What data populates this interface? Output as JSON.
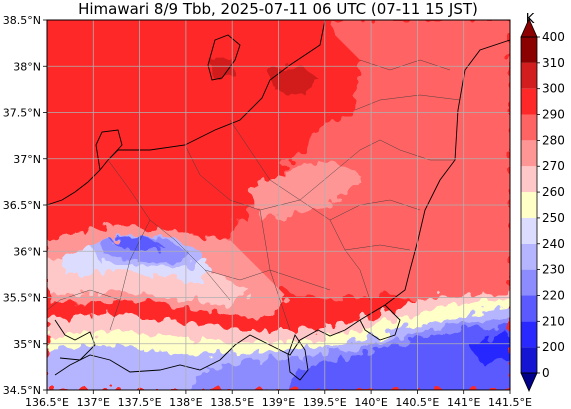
{
  "title": "Himawari 8/9 Tbb, 2025-07-11 06 UTC (07-11 15 JST)",
  "map": {
    "lon_range": [
      136.5,
      141.5
    ],
    "lat_range": [
      34.5,
      38.5
    ],
    "lon_ticks": [
      {
        "value": 136.5,
        "label": "136.5°E"
      },
      {
        "value": 137.0,
        "label": "137°E"
      },
      {
        "value": 137.5,
        "label": "137.5°E"
      },
      {
        "value": 138.0,
        "label": "138°E"
      },
      {
        "value": 138.5,
        "label": "138.5°E"
      },
      {
        "value": 139.0,
        "label": "139°E"
      },
      {
        "value": 139.5,
        "label": "139.5°E"
      },
      {
        "value": 140.0,
        "label": "140°E"
      },
      {
        "value": 140.5,
        "label": "140.5°E"
      },
      {
        "value": 141.0,
        "label": "141°E"
      },
      {
        "value": 141.5,
        "label": "141.5°E"
      }
    ],
    "lat_ticks": [
      {
        "value": 38.5,
        "label": "38.5°N"
      },
      {
        "value": 38.0,
        "label": "38°N"
      },
      {
        "value": 37.5,
        "label": "37.5°N"
      },
      {
        "value": 37.0,
        "label": "37°N"
      },
      {
        "value": 36.5,
        "label": "36.5°N"
      },
      {
        "value": 36.0,
        "label": "36°N"
      },
      {
        "value": 35.5,
        "label": "35.5°N"
      },
      {
        "value": 35.0,
        "label": "35°N"
      },
      {
        "value": 34.5,
        "label": "34.5°N"
      }
    ],
    "grid": true
  },
  "colorbar": {
    "unit": "K",
    "levels": [
      {
        "value": 0,
        "label": "0",
        "color": "#00008b"
      },
      {
        "value": 200,
        "label": "200",
        "color": "#1414d2"
      },
      {
        "value": 210,
        "label": "210",
        "color": "#2828ff"
      },
      {
        "value": 220,
        "label": "220",
        "color": "#5a5aff"
      },
      {
        "value": 230,
        "label": "230",
        "color": "#8c8cff"
      },
      {
        "value": 240,
        "label": "240",
        "color": "#b4b4ff"
      },
      {
        "value": 250,
        "label": "250",
        "color": "#dcdcff"
      },
      {
        "value": 260,
        "label": "260",
        "color": "#ffffc8"
      },
      {
        "value": 270,
        "label": "270",
        "color": "#ffc8c8"
      },
      {
        "value": 280,
        "label": "280",
        "color": "#ff9696"
      },
      {
        "value": 290,
        "label": "290",
        "color": "#ff6464"
      },
      {
        "value": 300,
        "label": "300",
        "color": "#ff2828"
      },
      {
        "value": 310,
        "label": "310",
        "color": "#d21e1e"
      },
      {
        "value": 400,
        "label": "400",
        "color": "#8b0000"
      }
    ],
    "under_color": "#00008b",
    "over_color": "#8b0000"
  }
}
